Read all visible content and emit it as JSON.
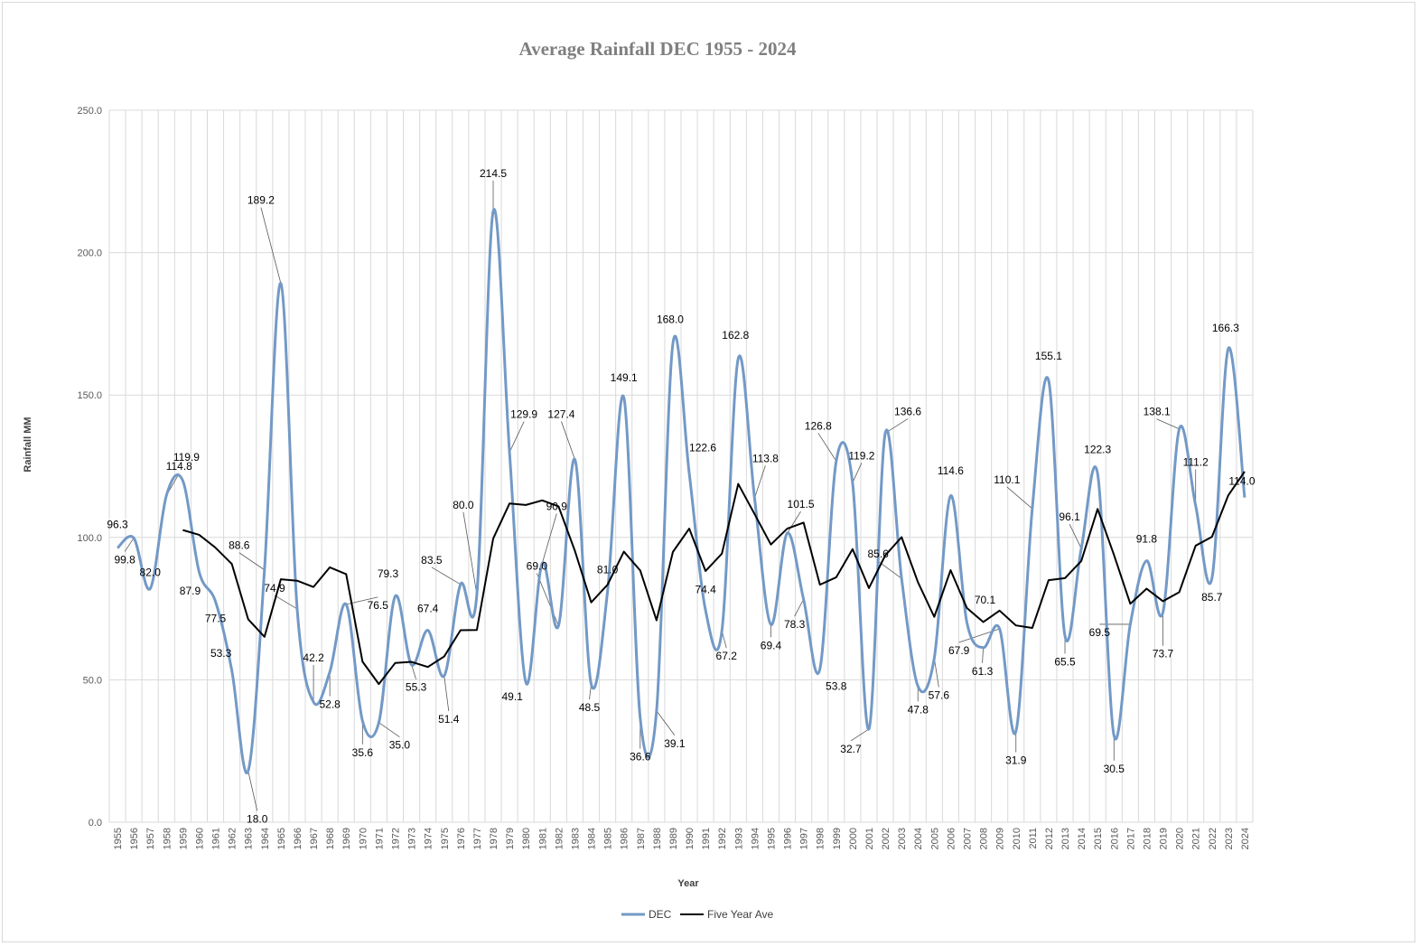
{
  "chart_data": {
    "type": "line",
    "title": "Average Rainfall DEC 1955 - 2024",
    "xlabel": "Year",
    "ylabel": "Rainfall MM",
    "ylim": [
      0,
      250
    ],
    "yticks": [
      "0.0",
      "50.0",
      "100.0",
      "150.0",
      "200.0",
      "250.0"
    ],
    "grid": true,
    "legend_position": "bottom",
    "categories": [
      "1955",
      "1956",
      "1957",
      "1958",
      "1959",
      "1960",
      "1961",
      "1962",
      "1963",
      "1964",
      "1965",
      "1966",
      "1967",
      "1968",
      "1969",
      "1970",
      "1971",
      "1972",
      "1973",
      "1974",
      "1975",
      "1976",
      "1977",
      "1978",
      "1979",
      "1980",
      "1981",
      "1982",
      "1983",
      "1984",
      "1985",
      "1986",
      "1987",
      "1988",
      "1989",
      "1990",
      "1991",
      "1992",
      "1993",
      "1994",
      "1995",
      "1996",
      "1997",
      "1998",
      "1999",
      "2000",
      "2001",
      "2002",
      "2003",
      "2004",
      "2005",
      "2006",
      "2007",
      "2008",
      "2009",
      "2010",
      "2011",
      "2012",
      "2013",
      "2014",
      "2015",
      "2016",
      "2017",
      "2018",
      "2019",
      "2020",
      "2021",
      "2022",
      "2023",
      "2024"
    ],
    "series": [
      {
        "name": "DEC",
        "color": "#7399c6",
        "smooth": true,
        "values": [
          96.3,
          99.8,
          82.0,
          114.8,
          119.9,
          87.9,
          77.5,
          53.3,
          18.0,
          88.6,
          189.2,
          74.9,
          42.2,
          52.8,
          76.5,
          35.6,
          35.0,
          79.3,
          55.3,
          67.4,
          51.4,
          83.5,
          80.0,
          214.5,
          129.9,
          49.1,
          90.9,
          69.0,
          127.4,
          48.5,
          81.0,
          149.1,
          36.6,
          39.1,
          168.0,
          122.6,
          74.4,
          67.2,
          162.8,
          113.8,
          69.4,
          101.5,
          78.3,
          53.8,
          126.8,
          119.2,
          32.7,
          136.6,
          85.6,
          47.8,
          57.6,
          114.6,
          70.1,
          61.3,
          67.9,
          31.9,
          110.1,
          155.1,
          65.5,
          96.1,
          122.3,
          30.5,
          69.5,
          91.8,
          73.7,
          138.1,
          111.2,
          85.7,
          166.3,
          114.0
        ]
      },
      {
        "name": "Five Year Ave",
        "color": "#000000",
        "smooth": false,
        "values": [
          null,
          null,
          null,
          null,
          102.6,
          100.9,
          96.4,
          90.7,
          71.3,
          65.1,
          85.3,
          84.8,
          82.6,
          89.5,
          87.1,
          56.4,
          48.5,
          55.9,
          56.3,
          54.5,
          58.2,
          67.4,
          67.5,
          99.6,
          111.9,
          111.4,
          113.0,
          110.9,
          95.3,
          77.2,
          83.4,
          95.0,
          88.4,
          70.9,
          94.9,
          103.1,
          88.2,
          94.3,
          118.8,
          108.2,
          97.5,
          103.1,
          105.2,
          83.4,
          86.0,
          95.9,
          82.2,
          93.7,
          100.1,
          84.3,
          72.1,
          88.5,
          75.2,
          70.3,
          74.3,
          69.1,
          68.2,
          85.0,
          85.7,
          91.7,
          110.0,
          93.9,
          76.7,
          82.0,
          77.6,
          80.8,
          97.1,
          100.2,
          114.8,
          123.1
        ]
      }
    ],
    "data_labels": [
      "96.3",
      "99.8",
      "82.0",
      "114.8",
      "119.9",
      "87.9",
      "77.5",
      "53.3",
      "18.0",
      "88.6",
      "189.2",
      "74.9",
      "42.2",
      "52.8",
      "76.5",
      "35.6",
      "35.0",
      "79.3",
      "55.3",
      "67.4",
      "51.4",
      "83.5",
      "80.0",
      "214.5",
      "129.9",
      "49.1",
      "90.9",
      "69.0",
      "127.4",
      "48.5",
      "81.0",
      "149.1",
      "36.6",
      "39.1",
      "168.0",
      "122.6",
      "74.4",
      "67.2",
      "162.8",
      "113.8",
      "69.4",
      "101.5",
      "78.3",
      "53.8",
      "126.8",
      "119.2",
      "32.7",
      "136.6",
      "85.6",
      "47.8",
      "57.6",
      "114.6",
      "70.1",
      "61.3",
      "67.9",
      "31.9",
      "110.1",
      "155.1",
      "65.5",
      "96.1",
      "122.3",
      "30.5",
      "69.5",
      "91.8",
      "73.7",
      "138.1",
      "111.2",
      "85.7",
      "166.3",
      "114.0"
    ]
  }
}
